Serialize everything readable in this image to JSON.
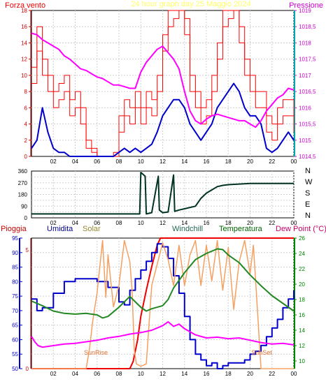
{
  "window": {
    "title": "24 hour graph day  25 Maggio 2024"
  },
  "chart_data": [
    {
      "id": "wind-pressure",
      "type": "line",
      "title": "24 hour graph day  25 Maggio 2024",
      "x_ticks": [
        "02",
        "04",
        "06",
        "08",
        "10",
        "12",
        "14",
        "16",
        "18",
        "20",
        "22",
        "00"
      ],
      "left_axis": {
        "label": "Forza vento",
        "range": [
          0,
          18
        ],
        "ticks": [
          "0",
          "2",
          "4",
          "6",
          "8",
          "10",
          "12",
          "14",
          "16",
          "18"
        ]
      },
      "right_axis": {
        "label": "Pressione",
        "range": [
          1014.5,
          1019
        ],
        "ticks": [
          "1014,5",
          "1015",
          "1015,5",
          "1016",
          "1016,5",
          "1017",
          "1017,5",
          "1018",
          "1018,5",
          "1019"
        ]
      },
      "series": [
        {
          "name": "Forza vento",
          "color": "#ff0000",
          "axis": "left",
          "x": [
            0,
            0.5,
            1,
            1.5,
            2,
            2.5,
            3,
            3.5,
            4,
            4.5,
            5,
            5.5,
            6,
            6.5,
            7,
            7.5,
            8,
            8.5,
            9,
            9.5,
            10,
            10.5,
            11,
            11.5,
            12,
            12.5,
            13,
            13.5,
            14,
            14.5,
            15,
            15.5,
            16,
            16.5,
            17,
            17.5,
            18,
            18.5,
            19,
            19.5,
            20,
            20.5,
            21,
            21.5,
            22,
            22.5,
            23,
            23.5,
            24
          ],
          "y": [
            9,
            13,
            10,
            8,
            6,
            7,
            8,
            5,
            6,
            4,
            1,
            0.5,
            0,
            0,
            0,
            0,
            3,
            5,
            4,
            6,
            4,
            6,
            5,
            8,
            13,
            16,
            17,
            18,
            15,
            8,
            6,
            4,
            5,
            8,
            12,
            16,
            17,
            18,
            14,
            10,
            8,
            6,
            6,
            3,
            2,
            4,
            5,
            5,
            3
          ]
        },
        {
          "name": "Raffica",
          "color": "#ff0000",
          "axis": "left",
          "x": [
            0,
            0.5,
            1,
            1.5,
            2,
            2.5,
            3,
            3.5,
            4,
            4.5,
            5,
            5.5,
            6,
            6.5,
            7,
            7.5,
            8,
            8.5,
            9,
            9.5,
            10,
            10.5,
            11,
            11.5,
            12,
            12.5,
            13,
            13.5,
            14,
            14.5,
            15,
            15.5,
            16,
            16.5,
            17,
            17.5,
            18,
            18.5,
            19,
            19.5,
            20,
            20.5,
            21,
            21.5,
            22,
            22.5,
            23,
            23.5,
            24
          ],
          "y": [
            11,
            16,
            12,
            10,
            8,
            9,
            10,
            7,
            8,
            6,
            2,
            1,
            0,
            0,
            0,
            0.5,
            5,
            7,
            6,
            8,
            6,
            8,
            7,
            10,
            15,
            18,
            18,
            18,
            17,
            10,
            8,
            6,
            7,
            10,
            14,
            18,
            18,
            18,
            16,
            12,
            10,
            8,
            8,
            5,
            4,
            6,
            7,
            7,
            5
          ]
        },
        {
          "name": "Vento medio",
          "color": "#0000cc",
          "axis": "left",
          "x": [
            0,
            0.5,
            1,
            1.5,
            2,
            2.5,
            3,
            3.5,
            4,
            4.5,
            5,
            5.5,
            6,
            6.5,
            7,
            7.5,
            8,
            8.5,
            9,
            9.5,
            10,
            10.5,
            11,
            11.5,
            12,
            12.5,
            13,
            13.5,
            14,
            14.5,
            15,
            15.5,
            16,
            16.5,
            17,
            17.5,
            18,
            18.5,
            19,
            19.5,
            20,
            20.5,
            21,
            21.5,
            22,
            22.5,
            23,
            23.5,
            24
          ],
          "y": [
            1,
            2,
            6,
            3,
            1,
            0.5,
            0.5,
            0,
            0,
            0,
            0,
            0,
            0,
            0,
            0,
            0,
            0.5,
            1,
            0.5,
            1,
            0.5,
            1,
            1.5,
            3,
            5,
            6,
            7,
            7,
            6,
            4,
            3,
            2,
            3,
            4,
            6,
            7,
            8,
            9,
            8,
            6,
            5,
            5,
            4,
            1,
            0.5,
            1,
            2,
            3,
            2
          ]
        },
        {
          "name": "Pressione",
          "color": "#ff00ff",
          "axis": "right",
          "x": [
            0,
            0.5,
            1,
            1.5,
            2,
            2.5,
            3,
            3.5,
            4,
            4.5,
            5,
            5.5,
            6,
            6.5,
            7,
            7.5,
            8,
            8.5,
            9,
            9.5,
            10,
            10.5,
            11,
            11.5,
            12,
            12.5,
            13,
            13.5,
            14,
            14.5,
            15,
            15.5,
            16,
            16.5,
            17,
            17.5,
            18,
            18.5,
            19,
            19.5,
            20,
            20.5,
            21,
            21.5,
            22,
            22.5,
            23,
            23.5,
            24
          ],
          "y": [
            1018.3,
            1018.25,
            1018.1,
            1018.0,
            1017.9,
            1017.8,
            1017.6,
            1017.5,
            1017.35,
            1017.2,
            1017.15,
            1017.05,
            1016.95,
            1016.9,
            1016.8,
            1016.7,
            1016.7,
            1016.65,
            1016.6,
            1016.6,
            1017.1,
            1017.4,
            1017.6,
            1017.8,
            1017.9,
            1017.7,
            1017.5,
            1017.2,
            1016.5,
            1015.9,
            1015.6,
            1015.5,
            1015.65,
            1015.75,
            1015.8,
            1015.75,
            1015.7,
            1015.65,
            1015.6,
            1015.6,
            1015.5,
            1015.4,
            1015.6,
            1015.9,
            1016.1,
            1016.3,
            1016.4,
            1016.6,
            1016.55
          ]
        }
      ]
    },
    {
      "id": "wind-direction",
      "type": "line",
      "x_ticks": [
        "02",
        "04",
        "06",
        "08",
        "10",
        "12",
        "14",
        "16",
        "18",
        "20",
        "22",
        "00"
      ],
      "y_range": [
        0,
        360
      ],
      "y_ticks": [
        "0",
        "45",
        "90",
        "135",
        "180",
        "225",
        "270",
        "315",
        "360"
      ],
      "compass_labels": [
        "N",
        "W",
        "S",
        "E",
        "N"
      ],
      "series": [
        {
          "name": "Direzione vento",
          "color": "#003322",
          "x": [
            0,
            1,
            2,
            3,
            4,
            5,
            6,
            7,
            8,
            9,
            9.9,
            10,
            10.4,
            10.5,
            11,
            11.6,
            11.7,
            12,
            12.5,
            13,
            13.1,
            13.5,
            14,
            15,
            15.5,
            16,
            16.5,
            17,
            17.5,
            18,
            19,
            20,
            21,
            22,
            23,
            24
          ],
          "y": [
            30,
            30,
            30,
            30,
            30,
            30,
            30,
            30,
            30,
            30,
            30,
            350,
            320,
            30,
            40,
            320,
            60,
            40,
            45,
            330,
            50,
            60,
            70,
            90,
            150,
            190,
            215,
            240,
            250,
            255,
            260,
            265,
            265,
            265,
            265,
            265
          ]
        }
      ]
    },
    {
      "id": "weather",
      "type": "line",
      "x_ticks": [
        "02",
        "04",
        "06",
        "08",
        "10",
        "12",
        "14",
        "16",
        "18",
        "20",
        "22",
        "00"
      ],
      "left_axis": {
        "range": [
          50,
          95
        ],
        "ticks": [
          "50",
          "55",
          "60",
          "65",
          "70",
          "75",
          "80",
          "85",
          "90",
          "95"
        ]
      },
      "right_axis": {
        "label": "(°C)",
        "range": [
          9,
          26
        ],
        "ticks": [
          "10",
          "12",
          "14",
          "16",
          "18",
          "20",
          "22",
          "24",
          "26"
        ]
      },
      "rain_axis": {
        "range": [
          0,
          5.5
        ],
        "ticks": [
          "0",
          "5"
        ]
      },
      "legend": [
        "Pioggia",
        "Umidita",
        "Solar",
        "Windchill",
        "Temperatura",
        "Dew Point (°C)"
      ],
      "annotations": [
        "SunRise",
        "SunSet"
      ],
      "series": [
        {
          "name": "Pioggia",
          "color": "#ee0000",
          "axis": "rain",
          "x": [
            0,
            9,
            9.3,
            9.7,
            10,
            10.5,
            11,
            11.5,
            11.8,
            24
          ],
          "y": [
            0,
            0,
            0.3,
            1.2,
            2.2,
            3.3,
            4.3,
            5.2,
            5.5,
            5.5
          ]
        },
        {
          "name": "Umidita",
          "color": "#0000cc",
          "axis": "left",
          "x": [
            0,
            0.5,
            1,
            2,
            3,
            4,
            5,
            6,
            7,
            8,
            8.5,
            9,
            9.5,
            10,
            10.5,
            11,
            11.5,
            12,
            12.5,
            13,
            13.5,
            14,
            14.5,
            15,
            15.5,
            16,
            16.5,
            17,
            17.5,
            18,
            19,
            19.5,
            20,
            20.5,
            21,
            21.5,
            22,
            22.5,
            23,
            23.5,
            24
          ],
          "y": [
            74,
            70,
            71,
            76,
            80,
            81,
            81,
            80,
            78,
            73,
            72,
            77,
            81,
            84,
            87,
            90,
            93,
            92,
            88,
            82,
            76,
            68,
            60,
            55,
            53,
            51,
            52,
            50,
            51,
            52,
            52,
            53,
            55,
            56,
            58,
            61,
            64,
            67,
            71,
            74,
            77
          ]
        },
        {
          "name": "Solar",
          "color": "#f5a060",
          "axis": "rain",
          "x": [
            0,
            5,
            5.3,
            5.6,
            6,
            6.5,
            6.8,
            7,
            7.5,
            8,
            8.5,
            9,
            9.2,
            9.4,
            9.6,
            10,
            10.5,
            11,
            12,
            12.5,
            13,
            13.5,
            14,
            14.5,
            15,
            15.5,
            16,
            16.5,
            17,
            17.5,
            18,
            18.5,
            19,
            19.5,
            20,
            20.3,
            20.6,
            21,
            24
          ],
          "y": [
            0,
            0,
            0.8,
            2,
            3.2,
            5.4,
            3,
            4.8,
            2.6,
            3.5,
            5.4,
            4.5,
            3.3,
            0.8,
            0.2,
            0.1,
            0.2,
            3.5,
            5.3,
            4.6,
            3.5,
            5.2,
            3.5,
            4.8,
            5.4,
            3.5,
            5.2,
            3.7,
            5.4,
            3.3,
            5.1,
            2.5,
            4.5,
            5.4,
            4,
            5.2,
            3,
            0,
            0
          ]
        },
        {
          "name": "Temperatura",
          "color": "#228822",
          "axis": "right",
          "x": [
            0,
            0.5,
            1,
            2,
            3,
            4,
            5,
            6,
            6.5,
            7,
            8,
            9,
            10,
            10.5,
            11,
            12,
            12.5,
            13,
            14,
            15,
            16,
            17,
            17.5,
            18,
            19,
            20,
            21,
            22,
            23,
            24
          ],
          "y": [
            17.8,
            17.5,
            17.2,
            16.5,
            16.2,
            16.1,
            16.2,
            16.0,
            15.6,
            15.8,
            17,
            18.4,
            17,
            16.5,
            16.8,
            17.2,
            18,
            19.5,
            21.5,
            23.2,
            24,
            24.6,
            24.5,
            23.8,
            22.8,
            21.2,
            19.8,
            18.5,
            17.5,
            16.5
          ]
        },
        {
          "name": "Dew Point",
          "color": "#ff00ff",
          "axis": "right",
          "x": [
            0,
            0.3,
            0.6,
            1,
            2,
            3,
            4,
            5,
            6,
            7,
            8,
            9,
            10,
            11,
            12,
            12.5,
            13,
            13.5,
            14,
            15,
            16,
            17,
            18,
            19,
            20,
            21,
            22,
            23,
            24
          ],
          "y": [
            13.2,
            12.5,
            12,
            11.8,
            12,
            12.2,
            12.3,
            12.5,
            12.7,
            13,
            13.2,
            13.5,
            13.7,
            14.0,
            14.6,
            15.1,
            14.5,
            14.8,
            14.2,
            13.4,
            13.0,
            13.1,
            12.9,
            13.0,
            12.7,
            12.4,
            12.2,
            12.3,
            12.1
          ]
        }
      ]
    }
  ]
}
